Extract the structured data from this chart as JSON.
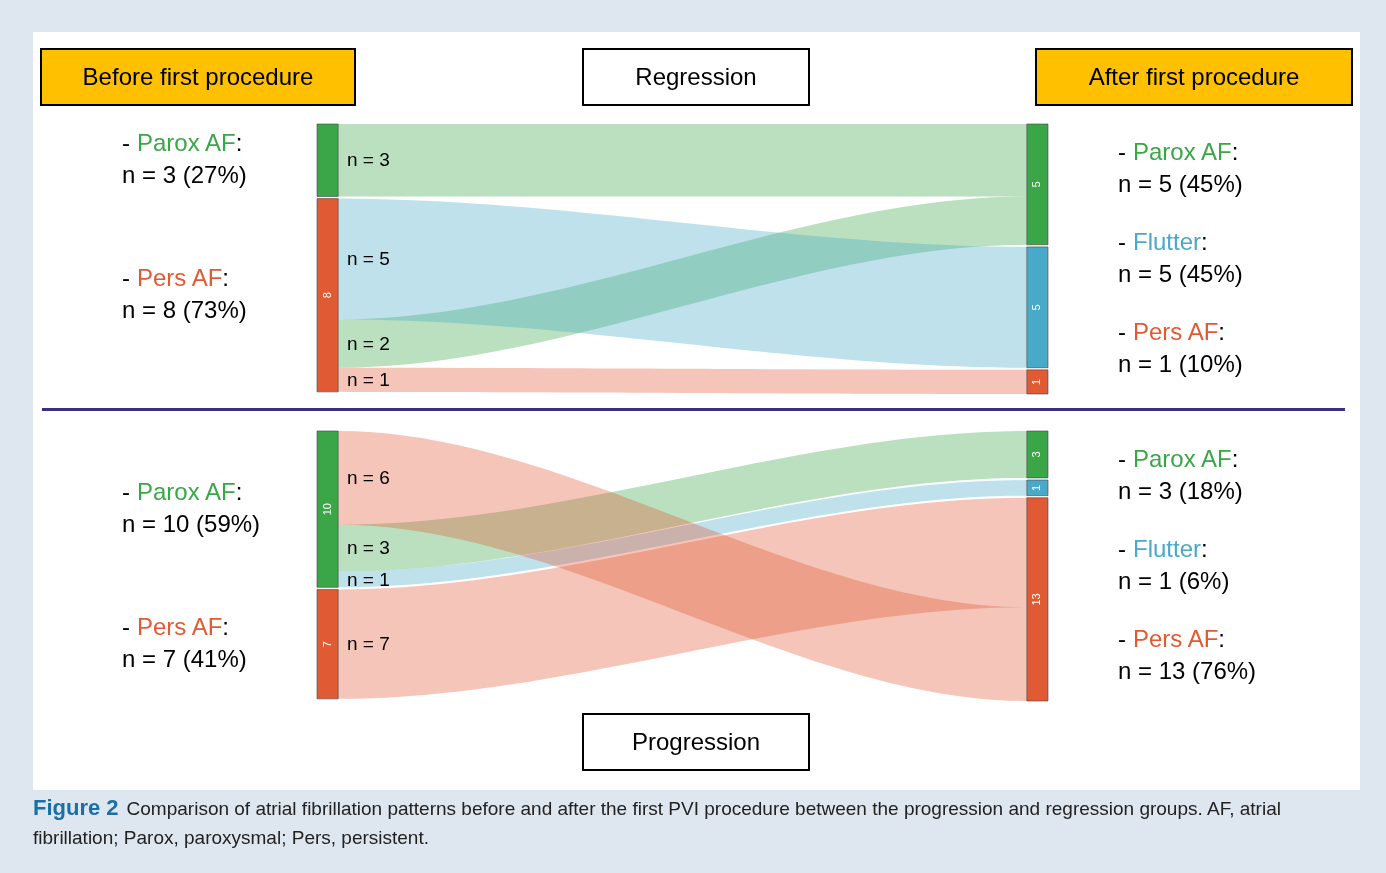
{
  "chart_data": [
    {
      "type": "other",
      "title": "Regression",
      "xlabel": "Before first procedure",
      "x2label": "After first procedure",
      "categories": [
        "Parox AF",
        "Pers AF"
      ],
      "colors": [
        "#3aa648",
        "#e05a34"
      ],
      "series": [
        {
          "name": "Parox AF",
          "color": "#3aa648",
          "values": [
            3,
            2
          ],
          "value_labels": [
            "n = 3",
            "n = 2"
          ]
        },
        {
          "name": "Flutter",
          "color": "#48a9c9",
          "values": [
            null,
            5
          ],
          "value_labels": [
            null,
            "n = 5"
          ]
        },
        {
          "name": "Pers AF",
          "color": "#e05a34",
          "values": [
            null,
            1
          ],
          "value_labels": [
            null,
            "n = 1"
          ]
        }
      ],
      "annotations": [
        "-",
        ":",
        "n = 3 (27%)",
        null,
        "-",
        ":",
        "n = 8 (73%)",
        "8",
        "-",
        ":",
        "n = 5 (45%)",
        "5",
        "-",
        ":",
        "n = 5 (45%)",
        "5",
        "-",
        ":",
        "n = 1 (10%)",
        "1"
      ]
    },
    {
      "type": "other",
      "title": "Progression",
      "categories": [
        "Parox AF",
        "Pers AF"
      ],
      "colors": [
        "#3aa648",
        "#e05a34"
      ],
      "series": [
        {
          "name": "Parox AF",
          "color": "#3aa648",
          "values": [
            3,
            null
          ],
          "value_labels": [
            "n = 3",
            null
          ]
        },
        {
          "name": "Flutter",
          "color": "#48a9c9",
          "values": [
            1,
            null
          ],
          "value_labels": [
            "n = 1",
            null
          ]
        },
        {
          "name": "Pers AF",
          "color": "#e05a34",
          "values": [
            6,
            7
          ],
          "value_labels": [
            "n = 6",
            "n = 7"
          ]
        }
      ],
      "annotations": [
        "-",
        ":",
        "n = 10 (59%)",
        "10",
        "-",
        ":",
        "n = 7 (41%)",
        "7",
        "-",
        ":",
        "n = 3 (18%)",
        "3",
        "-",
        ":",
        "n = 1 (6%)",
        "1",
        "-",
        ":",
        "n = 13 (76%)",
        "13",
        "Figure 2",
        "Comparison of atrial fibrillation patterns before and after the first PVI procedure between the progression and regression groups. AF, atrial fibrillation; Parox, paroxysmal; Pers, persistent."
      ]
    }
  ]
}
